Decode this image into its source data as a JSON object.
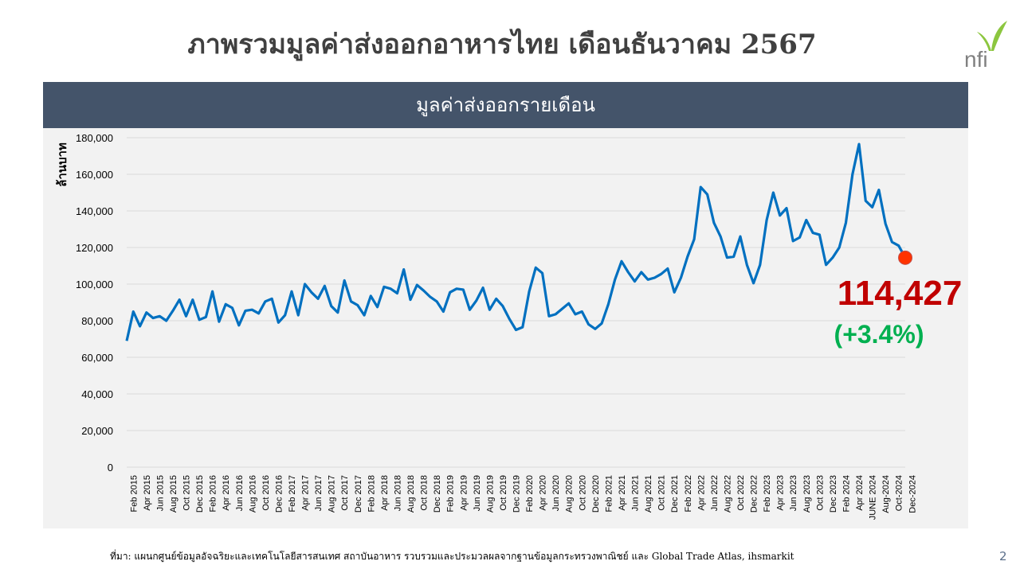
{
  "slide": {
    "title": "ภาพรวมมูลค่าส่งออกอาหารไทย เดือนธันวาคม 2567",
    "band_title": "มูลค่าส่งออกรายเดือน",
    "source": "ที่มา: แผนกศูนย์ข้อมูลอัจฉริยะและเทคโนโลยีสารสนเทศ สถาบันอาหาร รวบรวมและประมวลผลจากฐานข้อมูลกระทรวงพาณิชย์ และ Global Trade Atlas, ihsmarkit",
    "page_number": "2",
    "logo_text": "nfi"
  },
  "colors": {
    "line": "#0070c0",
    "band": "#44546a",
    "highlight_value": "#c00000",
    "highlight_change": "#00b050",
    "marker": "#ff3300",
    "grid": "#d9d9d9"
  },
  "chart_data": {
    "type": "line",
    "ylabel": "ล้านบาท",
    "ylim": [
      0,
      180000
    ],
    "yticks": [
      0,
      20000,
      40000,
      60000,
      80000,
      100000,
      120000,
      140000,
      160000,
      180000
    ],
    "ytick_labels": [
      "0",
      "20,000",
      "40,000",
      "60,000",
      "80,000",
      "100,000",
      "120,000",
      "140,000",
      "160,000",
      "180,000"
    ],
    "xtick_labels": [
      "Feb 2015",
      "Apr 2015",
      "Jun 2015",
      "Aug 2015",
      "Oct 2015",
      "Dec 2015",
      "Feb 2016",
      "Apr 2016",
      "Jun 2016",
      "Aug 2016",
      "Oct 2016",
      "Dec 2016",
      "Feb 2017",
      "Apr 2017",
      "Jun 2017",
      "Aug 2017",
      "Oct 2017",
      "Dec 2017",
      "Feb 2018",
      "Apr 2018",
      "Jun 2018",
      "Aug 2018",
      "Oct 2018",
      "Dec 2018",
      "Feb 2019",
      "Apr 2019",
      "Jun 2019",
      "Aug 2019",
      "Oct 2019",
      "Dec 2019",
      "Feb 2020",
      "Apr 2020",
      "Jun 2020",
      "Aug 2020",
      "Oct 2020",
      "Dec 2020",
      "Feb 2021",
      "Apr 2021",
      "Jun 2021",
      "Aug 2021",
      "Oct 2021",
      "Dec 2021",
      "Feb 2022",
      "Apr 2022",
      "Jun 2022",
      "Aug 2022",
      "Oct 2022",
      "Dec 2022",
      "Feb 2023",
      "Apr 2023",
      "Jun 2023",
      "Aug 2023",
      "Oct 2023",
      "Dec 2023",
      "Feb 2024",
      "Apr 2024",
      "JUNE 2024",
      "Aug-2024",
      "Oct-2024",
      "Dec-2024"
    ],
    "values": [
      69000,
      85000,
      77000,
      84500,
      81500,
      82500,
      80000,
      85500,
      91500,
      82500,
      91500,
      80500,
      82000,
      96000,
      79500,
      89000,
      87000,
      77500,
      85500,
      86000,
      84000,
      90500,
      92000,
      79000,
      83000,
      96000,
      83000,
      100000,
      95500,
      92000,
      99000,
      88000,
      84500,
      102000,
      90500,
      88500,
      83000,
      93500,
      87500,
      98500,
      97500,
      95000,
      108000,
      91500,
      99500,
      96500,
      93000,
      90500,
      85000,
      95500,
      97500,
      97000,
      86000,
      91000,
      98000,
      86000,
      92000,
      88000,
      81000,
      75000,
      76500,
      96000,
      109000,
      106000,
      82500,
      83500,
      86500,
      89500,
      83500,
      85000,
      78000,
      75500,
      78500,
      89000,
      102500,
      112500,
      106500,
      101500,
      106500,
      102500,
      103500,
      105500,
      108500,
      95500,
      103500,
      115000,
      124500,
      153000,
      149000,
      133500,
      126000,
      114500,
      115000,
      126000,
      110500,
      100500,
      110500,
      135000,
      150000,
      137500,
      141500,
      123500,
      125500,
      135000,
      128000,
      127000,
      110500,
      114500,
      120000,
      133500,
      160000,
      176500,
      145500,
      142000,
      151500,
      133000,
      123000,
      121000,
      114427
    ],
    "last_value_label": "114,427",
    "last_change_label": "(+3.4%)"
  }
}
